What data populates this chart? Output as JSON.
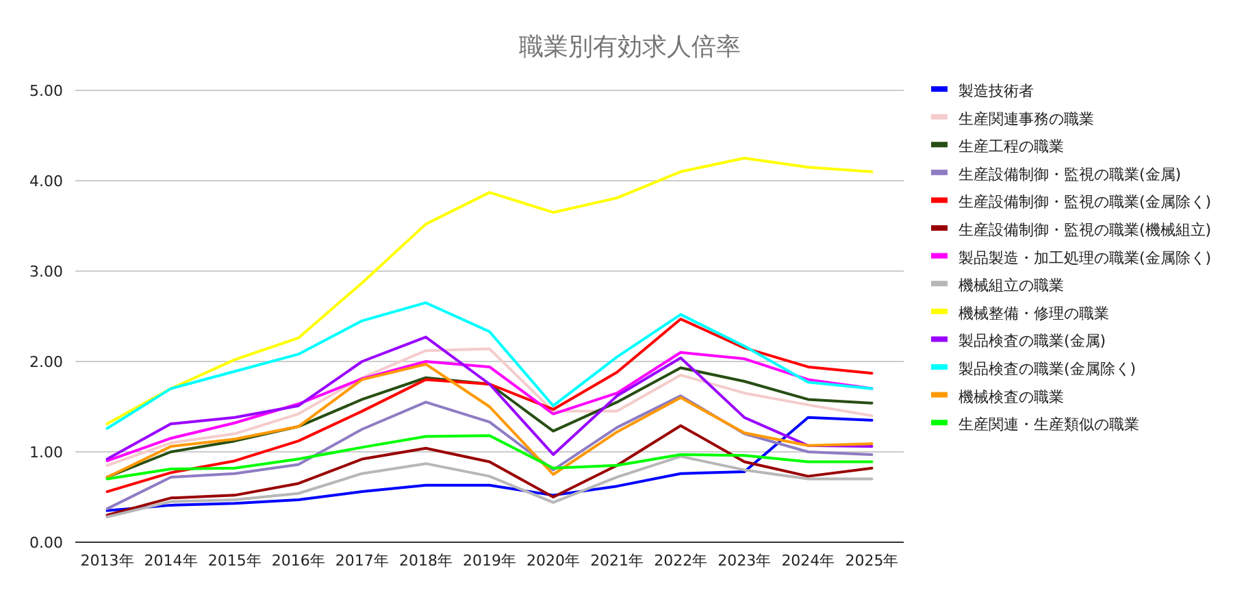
{
  "chart_data": {
    "type": "line",
    "title": "職業別有効求人倍率",
    "categories": [
      "2013年",
      "2014年",
      "2015年",
      "2016年",
      "2017年",
      "2018年",
      "2019年",
      "2020年",
      "2021年",
      "2022年",
      "2023年",
      "2024年",
      "2025年"
    ],
    "ylim": [
      0,
      5
    ],
    "yticks": [
      {
        "value": 0,
        "label": "0.00"
      },
      {
        "value": 1,
        "label": "1.00"
      },
      {
        "value": 2,
        "label": "2.00"
      },
      {
        "value": 3,
        "label": "3.00"
      },
      {
        "value": 4,
        "label": "4.00"
      },
      {
        "value": 5,
        "label": "5.00"
      }
    ],
    "grid": "y",
    "legend": "right",
    "marker": "none",
    "line_style": "solid",
    "series": [
      {
        "name": "製造技術者",
        "color": "#0000ff",
        "values": [
          0.35,
          0.41,
          0.43,
          0.47,
          0.56,
          0.63,
          0.63,
          0.52,
          0.62,
          0.76,
          0.78,
          1.38,
          1.35
        ]
      },
      {
        "name": "生産関連事務の職業",
        "color": "#f4cccc",
        "values": [
          0.85,
          1.1,
          1.2,
          1.42,
          1.82,
          2.12,
          2.14,
          1.45,
          1.45,
          1.85,
          1.65,
          1.52,
          1.4
        ]
      },
      {
        "name": "生産工程の職業",
        "color": "#274e13",
        "values": [
          0.72,
          1.0,
          1.12,
          1.28,
          1.58,
          1.82,
          1.75,
          1.23,
          1.55,
          1.93,
          1.78,
          1.58,
          1.54
        ]
      },
      {
        "name": "生産設備制御・監視の職業(金属)",
        "color": "#8e7cc3",
        "values": [
          0.37,
          0.72,
          0.76,
          0.86,
          1.25,
          1.55,
          1.33,
          0.8,
          1.27,
          1.62,
          1.2,
          1.0,
          0.97
        ]
      },
      {
        "name": "生産設備制御・監視の職業(金属除く)",
        "color": "#ff0000",
        "values": [
          0.56,
          0.77,
          0.9,
          1.12,
          1.45,
          1.8,
          1.75,
          1.47,
          1.88,
          2.47,
          2.15,
          1.94,
          1.87
        ]
      },
      {
        "name": "生産設備制御・監視の職業(機械組立)",
        "color": "#990000",
        "values": [
          0.3,
          0.49,
          0.52,
          0.65,
          0.92,
          1.04,
          0.89,
          0.5,
          0.85,
          1.29,
          0.89,
          0.73,
          0.82
        ]
      },
      {
        "name": "製品製造・加工処理の職業(金属除く)",
        "color": "#ff00ff",
        "values": [
          0.9,
          1.15,
          1.32,
          1.53,
          1.81,
          2.0,
          1.94,
          1.42,
          1.65,
          2.1,
          2.03,
          1.8,
          1.7
        ]
      },
      {
        "name": "機械組立の職業",
        "color": "#b7b7b7",
        "values": [
          0.28,
          0.45,
          0.47,
          0.54,
          0.76,
          0.87,
          0.73,
          0.44,
          0.72,
          0.95,
          0.8,
          0.7,
          0.7
        ]
      },
      {
        "name": "機械整備・修理の職業",
        "color": "#ffff00",
        "values": [
          1.31,
          1.7,
          2.02,
          2.26,
          2.87,
          3.52,
          3.87,
          3.65,
          3.81,
          4.1,
          4.25,
          4.15,
          4.1
        ]
      },
      {
        "name": "製品検査の職業(金属)",
        "color": "#9900ff",
        "values": [
          0.92,
          1.31,
          1.38,
          1.51,
          2.0,
          2.27,
          1.75,
          0.97,
          1.62,
          2.04,
          1.38,
          1.07,
          1.06
        ]
      },
      {
        "name": "製品検査の職業(金属除く)",
        "color": "#00ffff",
        "values": [
          1.26,
          1.7,
          1.89,
          2.08,
          2.45,
          2.65,
          2.33,
          1.51,
          2.05,
          2.52,
          2.17,
          1.77,
          1.7
        ]
      },
      {
        "name": "機械検査の職業",
        "color": "#ff9900",
        "values": [
          0.72,
          1.06,
          1.14,
          1.28,
          1.8,
          1.97,
          1.5,
          0.75,
          1.22,
          1.6,
          1.21,
          1.07,
          1.09
        ]
      },
      {
        "name": "生産関連・生産類似の職業",
        "color": "#00ff00",
        "values": [
          0.7,
          0.81,
          0.82,
          0.92,
          1.05,
          1.17,
          1.18,
          0.82,
          0.85,
          0.97,
          0.96,
          0.89,
          0.89
        ]
      }
    ]
  }
}
